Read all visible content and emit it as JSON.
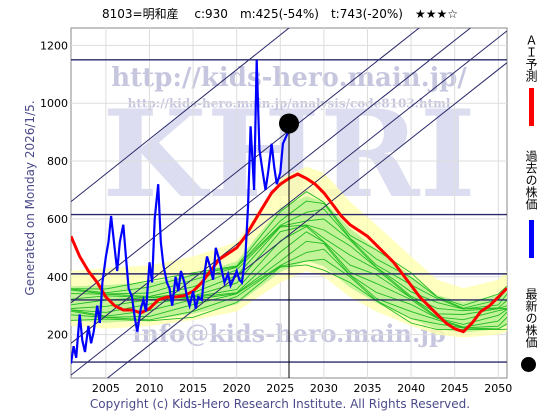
{
  "header": {
    "text": "8103=明和産　 c:930　m:425(-54%)　t:743(-20%)　★★★☆"
  },
  "side_note": "Generated on Monday 2026/1/5.",
  "footer": "Copyright (c) Kids-Hero Research Institute. All Rights Reserved.",
  "watermark": {
    "big": "KHRI",
    "url": "http://kids-hero.main.jp/",
    "analysis_url": "http://kids-hero.main.jp/analysis/code8103.html",
    "mail": "info@kids-hero.main.jp"
  },
  "legend": {
    "ai_label": "ＡＩ予測",
    "past_label": "過去の株価",
    "latest_label": "最新の株価"
  },
  "colors": {
    "ai": "#ff0000",
    "past": "#0000ff",
    "latest": "#000000",
    "band_fill": "#ffffaa",
    "sim_lines": "#22bb22",
    "sim_fill": "#aaee88",
    "channel": "#2a2a6a",
    "hline": "#2a2a6a"
  },
  "chart_data": {
    "type": "line",
    "xlim": [
      2001,
      2051
    ],
    "ylim": [
      50,
      1260
    ],
    "xticks": [
      2005,
      2010,
      2015,
      2020,
      2025,
      2030,
      2035,
      2040,
      2045,
      2050
    ],
    "yticks": [
      200,
      400,
      600,
      800,
      1000,
      1200
    ],
    "current_point": {
      "x": 2026.0,
      "y": 930
    },
    "current_vline_x": 2026.0,
    "horizontal_levels": [
      1150,
      615,
      410,
      320,
      105
    ],
    "series": [
      {
        "name": "過去の株価",
        "x": [
          2001.0,
          2001.3,
          2001.6,
          2002.0,
          2002.3,
          2002.6,
          2003.0,
          2003.3,
          2003.6,
          2004.0,
          2004.3,
          2004.6,
          2005.0,
          2005.3,
          2005.6,
          2006.0,
          2006.3,
          2006.6,
          2007.0,
          2007.3,
          2007.6,
          2008.0,
          2008.3,
          2008.6,
          2009.0,
          2009.3,
          2009.6,
          2010.0,
          2010.3,
          2010.6,
          2011.0,
          2011.3,
          2011.6,
          2012.0,
          2012.3,
          2012.6,
          2013.0,
          2013.3,
          2013.6,
          2014.0,
          2014.3,
          2014.6,
          2015.0,
          2015.3,
          2015.6,
          2016.0,
          2016.3,
          2016.6,
          2017.0,
          2017.3,
          2017.6,
          2018.0,
          2018.3,
          2018.6,
          2019.0,
          2019.3,
          2019.6,
          2020.0,
          2020.3,
          2020.6,
          2021.0,
          2021.3,
          2021.6,
          2022.0,
          2022.3,
          2022.6,
          2023.0,
          2023.3,
          2023.6,
          2024.0,
          2024.3,
          2024.6,
          2025.0,
          2025.3,
          2025.6,
          2025.9
        ],
        "y": [
          100,
          160,
          120,
          270,
          180,
          140,
          230,
          170,
          210,
          300,
          240,
          380,
          470,
          520,
          610,
          500,
          420,
          520,
          580,
          470,
          360,
          330,
          260,
          210,
          290,
          320,
          280,
          450,
          380,
          600,
          720,
          520,
          440,
          380,
          360,
          300,
          400,
          350,
          420,
          380,
          330,
          300,
          350,
          290,
          330,
          320,
          410,
          470,
          430,
          390,
          500,
          460,
          420,
          380,
          410,
          370,
          390,
          420,
          390,
          380,
          470,
          640,
          920,
          700,
          1150,
          840,
          760,
          700,
          760,
          860,
          780,
          720,
          760,
          860,
          880,
          900
        ]
      },
      {
        "name": "ＡＩ予測",
        "x": [
          2001,
          2002,
          2003,
          2004,
          2005,
          2006,
          2007,
          2008,
          2009,
          2010,
          2011,
          2012,
          2013,
          2014,
          2015,
          2016,
          2017,
          2018,
          2019,
          2020,
          2021,
          2022,
          2023,
          2024,
          2025,
          2026,
          2027,
          2028,
          2029,
          2030,
          2031,
          2032,
          2033,
          2034,
          2035,
          2036,
          2037,
          2038,
          2039,
          2040,
          2041,
          2042,
          2043,
          2044,
          2045,
          2046,
          2047,
          2048,
          2049,
          2050,
          2051
        ],
        "y": [
          540,
          470,
          420,
          380,
          330,
          300,
          285,
          285,
          275,
          290,
          320,
          330,
          330,
          335,
          350,
          380,
          420,
          460,
          480,
          500,
          540,
          590,
          640,
          690,
          720,
          740,
          755,
          740,
          720,
          690,
          650,
          610,
          580,
          560,
          540,
          510,
          480,
          450,
          410,
          370,
          330,
          300,
          270,
          240,
          220,
          210,
          240,
          280,
          300,
          330,
          360
        ]
      }
    ],
    "band": {
      "x": [
        2001,
        2005,
        2010,
        2015,
        2020,
        2025,
        2028,
        2030,
        2033,
        2036,
        2040,
        2043,
        2046,
        2050,
        2051
      ],
      "upper": [
        420,
        430,
        440,
        470,
        520,
        740,
        780,
        760,
        660,
        580,
        470,
        390,
        360,
        390,
        420
      ],
      "lower": [
        230,
        220,
        230,
        250,
        280,
        380,
        420,
        400,
        330,
        280,
        230,
        200,
        190,
        200,
        210
      ]
    },
    "channel_lines": [
      {
        "x": [
          2001,
          2051
        ],
        "y": [
          660,
          1860
        ]
      },
      {
        "x": [
          2001,
          2051
        ],
        "y": [
          310,
          1500
        ]
      },
      {
        "x": [
          2001,
          2051
        ],
        "y": [
          170,
          1360
        ]
      },
      {
        "x": [
          2001,
          2051
        ],
        "y": [
          60,
          1250
        ]
      },
      {
        "x": [
          2001,
          2051
        ],
        "y": [
          -50,
          1140
        ]
      }
    ]
  }
}
